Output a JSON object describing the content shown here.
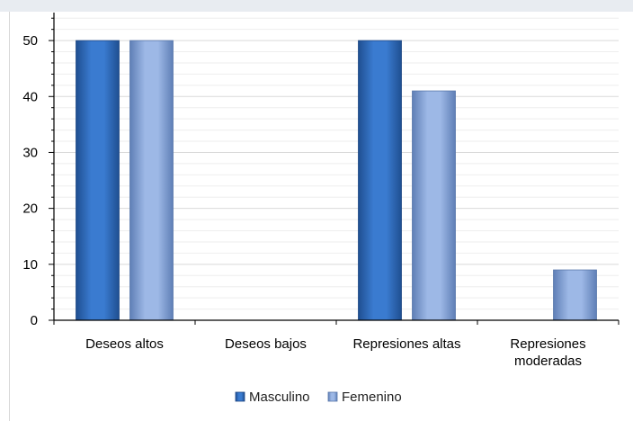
{
  "chart_data": {
    "type": "bar",
    "title": "",
    "xlabel": "",
    "ylabel": "",
    "categories": [
      [
        "Deseos altos"
      ],
      [
        "Deseos  bajos"
      ],
      [
        "Represiones altas"
      ],
      [
        "Represiones",
        "moderadas"
      ]
    ],
    "series": [
      {
        "name": "Masculino",
        "values": [
          50,
          0,
          50,
          0
        ],
        "color": "#2f6ebd"
      },
      {
        "name": "Femenino",
        "values": [
          50,
          0,
          41,
          9
        ],
        "color": "#7f9fd4"
      }
    ],
    "ylim": [
      0,
      55
    ],
    "yticks": [
      0,
      10,
      20,
      30,
      40,
      50
    ],
    "grid": true,
    "legend": "bottom"
  }
}
